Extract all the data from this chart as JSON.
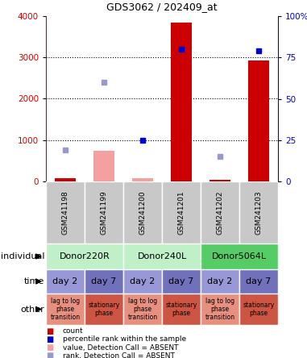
{
  "title": "GDS3062 / 202409_at",
  "samples": [
    "GSM241198",
    "GSM241199",
    "GSM241200",
    "GSM241201",
    "GSM241202",
    "GSM241203"
  ],
  "count_values": [
    80,
    0,
    80,
    3850,
    40,
    2930
  ],
  "value_absent": [
    false,
    true,
    true,
    false,
    false,
    false
  ],
  "value_absent_values": [
    0,
    750,
    80,
    0,
    0,
    0
  ],
  "rank_values": [
    19,
    60,
    25,
    80,
    15,
    79
  ],
  "rank_absent": [
    true,
    true,
    false,
    false,
    true,
    false
  ],
  "ylim_left": [
    0,
    4000
  ],
  "ylim_right": [
    0,
    100
  ],
  "yticks_left": [
    0,
    1000,
    2000,
    3000,
    4000
  ],
  "yticks_right": [
    0,
    25,
    50,
    75,
    100
  ],
  "ytick_labels_right": [
    "0",
    "25",
    "50",
    "75",
    "100%"
  ],
  "bar_color_red": "#cc0000",
  "bar_color_pink": "#f4a0a0",
  "dot_color_blue": "#0000cc",
  "dot_color_lightblue": "#9898cc",
  "left_label_color": "#cc0000",
  "right_label_color": "#0000cc",
  "ind_info": [
    {
      "label": "Donor220R",
      "start": 0,
      "end": 2,
      "color": "#c0f0c8"
    },
    {
      "label": "Donor240L",
      "start": 2,
      "end": 4,
      "color": "#c0f0c8"
    },
    {
      "label": "Donor5064L",
      "start": 4,
      "end": 6,
      "color": "#55cc66"
    }
  ],
  "time_labels": [
    "day 2",
    "day 7",
    "day 2",
    "day 7",
    "day 2",
    "day 7"
  ],
  "time_colors": [
    "#9898d8",
    "#7070bb",
    "#9898d8",
    "#7070bb",
    "#9898d8",
    "#7070bb"
  ],
  "other_texts": [
    "lag to log\nphase\ntransition",
    "stationary\nphase",
    "lag to log\nphase\ntransition",
    "stationary\nphase",
    "lag to log\nphase\ntransition",
    "stationary\nphase"
  ],
  "other_colors": [
    "#e89080",
    "#cc5544",
    "#e89080",
    "#cc5544",
    "#e89080",
    "#cc5544"
  ],
  "legend_colors": [
    "#cc0000",
    "#0000cc",
    "#f4a0a0",
    "#9898cc"
  ],
  "legend_labels": [
    "count",
    "percentile rank within the sample",
    "value, Detection Call = ABSENT",
    "rank, Detection Call = ABSENT"
  ],
  "row_labels": [
    "individual",
    "time",
    "other"
  ],
  "gsm_bg_color": "#c8c8c8"
}
